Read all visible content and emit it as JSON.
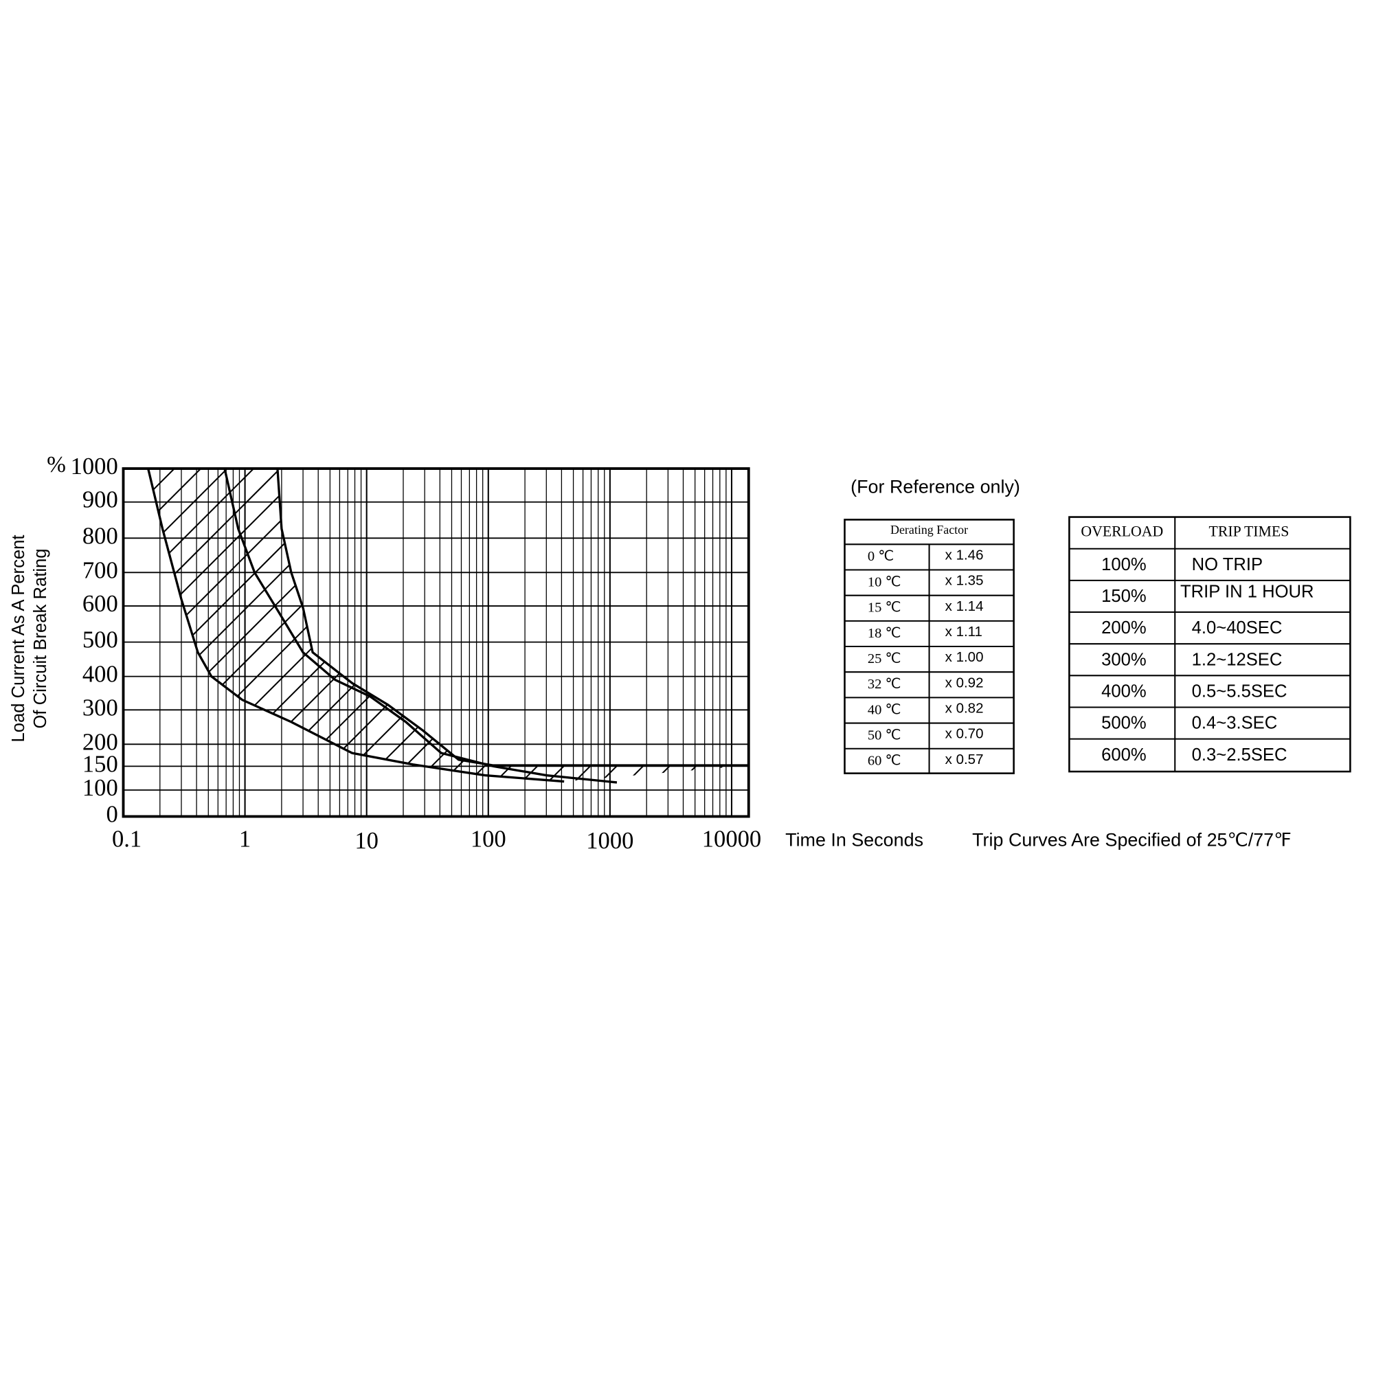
{
  "chart_data": {
    "type": "line",
    "y_label": "Load Current As A Percent",
    "y_label_2": "Of Circuit Break Rating",
    "y_unit": "%",
    "x_label": "Time In Seconds",
    "note": "Trip Curves Are Specified of 25℃/77℉",
    "x_scale": "log",
    "grid": true,
    "color": "#000000",
    "xlim": [
      0.1,
      13800
    ],
    "xticks": [
      0.1,
      1,
      10,
      100,
      1000,
      10000
    ],
    "ylim": [
      0,
      1000
    ],
    "yticks": [
      0,
      100,
      150,
      200,
      300,
      400,
      500,
      600,
      700,
      800,
      900,
      1000
    ],
    "series": [
      {
        "x": [
          0.16,
          0.21,
          0.3,
          0.41,
          0.53,
          0.95,
          2.4,
          7.6,
          24,
          94,
          420
        ],
        "values": [
          1000,
          826,
          620,
          470,
          400,
          330,
          265,
          180,
          154,
          131,
          118
        ]
      },
      {
        "x": [
          0.68,
          0.88,
          1.2,
          2.0,
          3.0,
          5.5,
          10.7,
          21,
          41,
          110,
          300,
          1140
        ],
        "values": [
          1000,
          826,
          700,
          570,
          470,
          390,
          340,
          265,
          180,
          150,
          131,
          116
        ]
      },
      {
        "x": [
          1.85,
          2.0,
          2.4,
          3.0,
          3.6,
          7.6,
          15,
          29,
          57,
          110,
          390,
          13800
        ],
        "values": [
          1000,
          826,
          700,
          595,
          470,
          380,
          315,
          240,
          165,
          152,
          152,
          152
        ]
      }
    ]
  },
  "reference_note": "(For Reference only)",
  "derating_table": {
    "header": "Derating Factor",
    "rows": [
      [
        "0 ℃",
        "x 1.46"
      ],
      [
        "10 ℃",
        "x 1.35"
      ],
      [
        "15 ℃",
        "x 1.14"
      ],
      [
        "18 ℃",
        "x 1.11"
      ],
      [
        "25 ℃",
        "x 1.00"
      ],
      [
        "32 ℃",
        "x 0.92"
      ],
      [
        "40 ℃",
        "x 0.82"
      ],
      [
        "50 ℃",
        "x 0.70"
      ],
      [
        "60 ℃",
        "x 0.57"
      ]
    ]
  },
  "trip_table": {
    "columns": [
      "OVERLOAD",
      "TRIP TIMES"
    ],
    "rows": [
      [
        "100%",
        "NO TRIP"
      ],
      [
        "150%",
        "TRIP IN 1 HOUR"
      ],
      [
        "200%",
        "4.0~40SEC"
      ],
      [
        "300%",
        "1.2~12SEC"
      ],
      [
        "400%",
        "0.5~5.5SEC"
      ],
      [
        "500%",
        "0.4~3.SEC"
      ],
      [
        "600%",
        "0.3~2.5SEC"
      ]
    ]
  }
}
